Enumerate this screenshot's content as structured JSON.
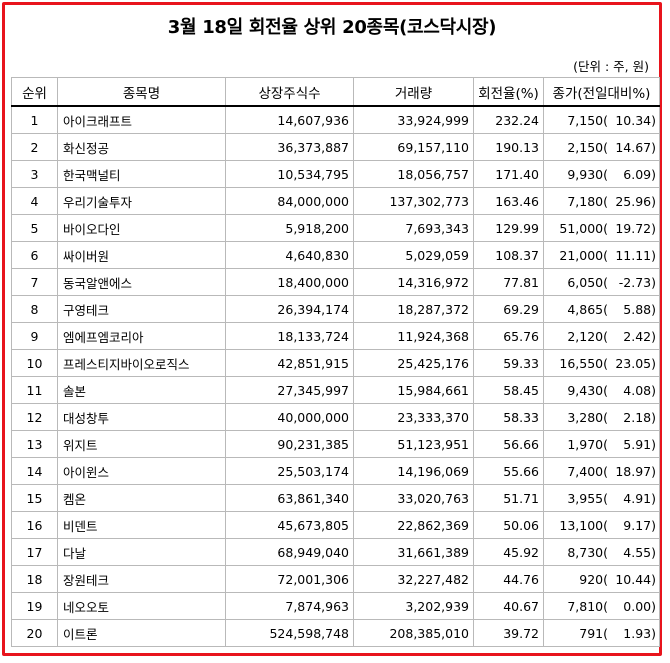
{
  "title": "3월 18일 회전율 상위 20종목(코스닥시장)",
  "unit": "(단위 : 주, 원)",
  "headers": [
    "순위",
    "종목명",
    "상장주식수",
    "거래량",
    "회전율(%)",
    "종가(전일대비%)"
  ],
  "rows": [
    {
      "rank": "1",
      "name": "아이크래프트",
      "shares": "14,607,936",
      "volume": "33,924,999",
      "turnover": "232.24",
      "price": "7,150(",
      "change": "10.34)"
    },
    {
      "rank": "2",
      "name": "화신정공",
      "shares": "36,373,887",
      "volume": "69,157,110",
      "turnover": "190.13",
      "price": "2,150(",
      "change": "14.67)"
    },
    {
      "rank": "3",
      "name": "한국맥널티",
      "shares": "10,534,795",
      "volume": "18,056,757",
      "turnover": "171.40",
      "price": "9,930(",
      "change": "6.09)"
    },
    {
      "rank": "4",
      "name": "우리기술투자",
      "shares": "84,000,000",
      "volume": "137,302,773",
      "turnover": "163.46",
      "price": "7,180(",
      "change": "25.96)"
    },
    {
      "rank": "5",
      "name": "바이오다인",
      "shares": "5,918,200",
      "volume": "7,693,343",
      "turnover": "129.99",
      "price": "51,000(",
      "change": "19.72)"
    },
    {
      "rank": "6",
      "name": "싸이버원",
      "shares": "4,640,830",
      "volume": "5,029,059",
      "turnover": "108.37",
      "price": "21,000(",
      "change": "11.11)"
    },
    {
      "rank": "7",
      "name": "동국알앤에스",
      "shares": "18,400,000",
      "volume": "14,316,972",
      "turnover": "77.81",
      "price": "6,050(",
      "change": "-2.73)"
    },
    {
      "rank": "8",
      "name": "구영테크",
      "shares": "26,394,174",
      "volume": "18,287,372",
      "turnover": "69.29",
      "price": "4,865(",
      "change": "5.88)"
    },
    {
      "rank": "9",
      "name": "엠에프엠코리아",
      "shares": "18,133,724",
      "volume": "11,924,368",
      "turnover": "65.76",
      "price": "2,120(",
      "change": "2.42)"
    },
    {
      "rank": "10",
      "name": "프레스티지바이오로직스",
      "shares": "42,851,915",
      "volume": "25,425,176",
      "turnover": "59.33",
      "price": "16,550(",
      "change": "23.05)"
    },
    {
      "rank": "11",
      "name": "솔본",
      "shares": "27,345,997",
      "volume": "15,984,661",
      "turnover": "58.45",
      "price": "9,430(",
      "change": "4.08)"
    },
    {
      "rank": "12",
      "name": "대성창투",
      "shares": "40,000,000",
      "volume": "23,333,370",
      "turnover": "58.33",
      "price": "3,280(",
      "change": "2.18)"
    },
    {
      "rank": "13",
      "name": "위지트",
      "shares": "90,231,385",
      "volume": "51,123,951",
      "turnover": "56.66",
      "price": "1,970(",
      "change": "5.91)"
    },
    {
      "rank": "14",
      "name": "아이윈스",
      "shares": "25,503,174",
      "volume": "14,196,069",
      "turnover": "55.66",
      "price": "7,400(",
      "change": "18.97)"
    },
    {
      "rank": "15",
      "name": "켐온",
      "shares": "63,861,340",
      "volume": "33,020,763",
      "turnover": "51.71",
      "price": "3,955(",
      "change": "4.91)"
    },
    {
      "rank": "16",
      "name": "비덴트",
      "shares": "45,673,805",
      "volume": "22,862,369",
      "turnover": "50.06",
      "price": "13,100(",
      "change": "9.17)"
    },
    {
      "rank": "17",
      "name": "다날",
      "shares": "68,949,040",
      "volume": "31,661,389",
      "turnover": "45.92",
      "price": "8,730(",
      "change": "4.55)"
    },
    {
      "rank": "18",
      "name": "장원테크",
      "shares": "72,001,306",
      "volume": "32,227,482",
      "turnover": "44.76",
      "price": "920(",
      "change": "10.44)"
    },
    {
      "rank": "19",
      "name": "네오오토",
      "shares": "7,874,963",
      "volume": "3,202,939",
      "turnover": "40.67",
      "price": "7,810(",
      "change": "0.00)"
    },
    {
      "rank": "20",
      "name": "이트론",
      "shares": "524,598,748",
      "volume": "208,385,010",
      "turnover": "39.72",
      "price": "791(",
      "change": "1.93)"
    }
  ],
  "colors": {
    "frame": "#e8141c",
    "grid": "#b9b9b9"
  }
}
